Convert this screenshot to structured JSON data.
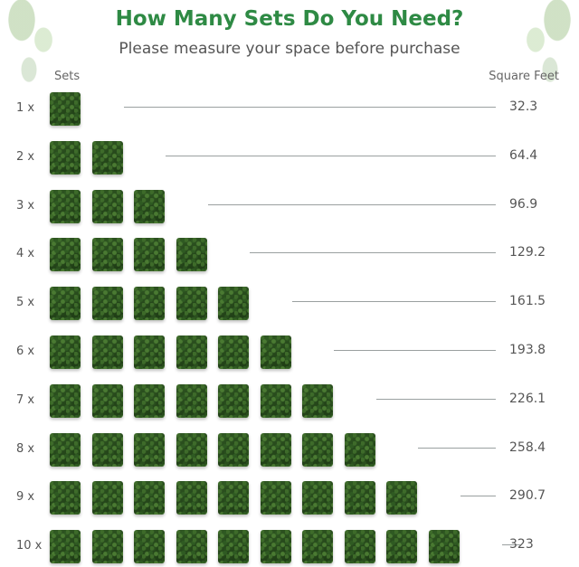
{
  "header": {
    "title": "How Many Sets Do You Need?",
    "subtitle": "Please measure your space before purchase"
  },
  "columns": {
    "sets": "Sets",
    "square_feet": "Square Feet"
  },
  "rows": [
    {
      "label": "1 x",
      "sets": 1,
      "square_feet": "32.3"
    },
    {
      "label": "2 x",
      "sets": 2,
      "square_feet": "64.4"
    },
    {
      "label": "3 x",
      "sets": 3,
      "square_feet": "96.9"
    },
    {
      "label": "4 x",
      "sets": 4,
      "square_feet": "129.2"
    },
    {
      "label": "5 x",
      "sets": 5,
      "square_feet": "161.5"
    },
    {
      "label": "6 x",
      "sets": 6,
      "square_feet": "193.8"
    },
    {
      "label": "7 x",
      "sets": 7,
      "square_feet": "226.1"
    },
    {
      "label": "8 x",
      "sets": 8,
      "square_feet": "258.4"
    },
    {
      "label": "9 x",
      "sets": 9,
      "square_feet": "290.7"
    },
    {
      "label": "10 x",
      "sets": 10,
      "square_feet": "323"
    }
  ],
  "colors": {
    "title": "#2e8a44",
    "panel": "#2f5622"
  },
  "icons": {
    "panel": "hedge-panel-icon",
    "decoration": "fern-leaf-icon"
  }
}
